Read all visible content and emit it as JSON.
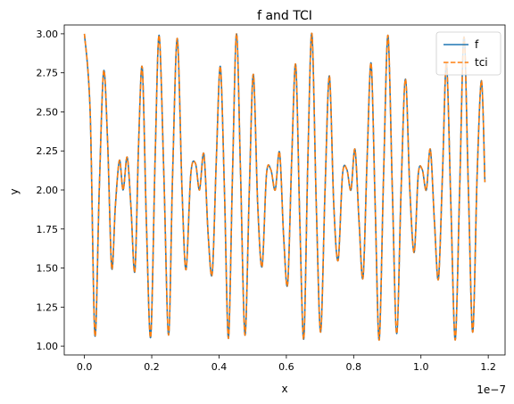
{
  "chart_data": {
    "type": "line",
    "title": "f and TCI",
    "xlabel": "x",
    "ylabel": "y",
    "x_offset_text": "1e−7",
    "xlim": [
      -0.06,
      1.25
    ],
    "ylim": [
      0.9435,
      3.0565
    ],
    "x_ticks": [
      0.0,
      0.2,
      0.4,
      0.6,
      0.8,
      1.0,
      1.2
    ],
    "x_tick_labels": [
      "0.0",
      "0.2",
      "0.4",
      "0.6",
      "0.8",
      "1.0",
      "1.2"
    ],
    "y_ticks": [
      1.0,
      1.25,
      1.5,
      1.75,
      2.0,
      2.25,
      2.5,
      2.75,
      3.0
    ],
    "y_tick_labels": [
      "1.00",
      "1.25",
      "1.50",
      "1.75",
      "2.00",
      "2.25",
      "2.50",
      "2.75",
      "3.00"
    ],
    "legend_placement": "upper right",
    "grid": false,
    "series": [
      {
        "name": "f",
        "color": "#1f77b4",
        "style": "solid",
        "x": [
          0.0,
          0.017,
          0.031,
          0.044,
          0.057,
          0.069,
          0.081,
          0.092,
          0.104,
          0.115,
          0.127,
          0.138,
          0.15,
          0.161,
          0.172,
          0.184,
          0.197,
          0.21,
          0.222,
          0.236,
          0.25,
          0.262,
          0.276,
          0.29,
          0.302,
          0.316,
          0.33,
          0.342,
          0.355,
          0.368,
          0.38,
          0.392,
          0.404,
          0.416,
          0.428,
          0.44,
          0.452,
          0.464,
          0.477,
          0.49,
          0.502,
          0.515,
          0.528,
          0.541,
          0.554,
          0.567,
          0.58,
          0.592,
          0.604,
          0.616,
          0.628,
          0.64,
          0.652,
          0.664,
          0.676,
          0.689,
          0.702,
          0.715,
          0.728,
          0.741,
          0.754,
          0.767,
          0.78,
          0.792,
          0.804,
          0.816,
          0.828,
          0.84,
          0.852,
          0.864,
          0.876,
          0.889,
          0.902,
          0.915,
          0.928,
          0.941,
          0.954,
          0.967,
          0.98,
          0.992,
          1.004,
          1.016,
          1.028,
          1.04,
          1.052,
          1.064,
          1.076,
          1.089,
          1.102,
          1.115,
          1.128,
          1.141,
          1.154,
          1.167,
          1.18,
          1.19
        ],
        "y": [
          3.0,
          2.5,
          1.07,
          2.0,
          2.76,
          2.3,
          1.5,
          1.9,
          2.19,
          2.0,
          2.21,
          1.9,
          1.48,
          2.3,
          2.78,
          1.8,
          1.06,
          2.2,
          2.99,
          2.1,
          1.07,
          2.1,
          2.97,
          2.0,
          1.49,
          2.1,
          2.17,
          2.0,
          2.23,
          1.7,
          1.47,
          2.2,
          2.79,
          2.0,
          1.05,
          2.1,
          3.0,
          2.1,
          1.07,
          2.0,
          2.74,
          1.9,
          1.51,
          2.1,
          2.13,
          2.0,
          2.24,
          1.7,
          1.4,
          2.2,
          2.8,
          1.8,
          1.05,
          2.2,
          3.0,
          1.9,
          1.09,
          2.0,
          2.73,
          1.9,
          1.55,
          2.1,
          2.13,
          2.0,
          2.26,
          1.8,
          1.44,
          2.2,
          2.81,
          1.9,
          1.04,
          2.1,
          2.99,
          2.0,
          1.08,
          2.0,
          2.71,
          2.0,
          1.6,
          2.1,
          2.13,
          2.0,
          2.26,
          1.8,
          1.43,
          2.1,
          2.81,
          1.9,
          1.04,
          2.0,
          2.98,
          2.0,
          1.09,
          2.1,
          2.7,
          2.05
        ]
      },
      {
        "name": "tci",
        "color": "#ff7f0e",
        "style": "dashed",
        "x": [
          0.0,
          0.017,
          0.031,
          0.044,
          0.057,
          0.069,
          0.081,
          0.092,
          0.104,
          0.115,
          0.127,
          0.138,
          0.15,
          0.161,
          0.172,
          0.184,
          0.197,
          0.21,
          0.222,
          0.236,
          0.25,
          0.262,
          0.276,
          0.29,
          0.302,
          0.316,
          0.33,
          0.342,
          0.355,
          0.368,
          0.38,
          0.392,
          0.404,
          0.416,
          0.428,
          0.44,
          0.452,
          0.464,
          0.477,
          0.49,
          0.502,
          0.515,
          0.528,
          0.541,
          0.554,
          0.567,
          0.58,
          0.592,
          0.604,
          0.616,
          0.628,
          0.64,
          0.652,
          0.664,
          0.676,
          0.689,
          0.702,
          0.715,
          0.728,
          0.741,
          0.754,
          0.767,
          0.78,
          0.792,
          0.804,
          0.816,
          0.828,
          0.84,
          0.852,
          0.864,
          0.876,
          0.889,
          0.902,
          0.915,
          0.928,
          0.941,
          0.954,
          0.967,
          0.98,
          0.992,
          1.004,
          1.016,
          1.028,
          1.04,
          1.052,
          1.064,
          1.076,
          1.089,
          1.102,
          1.115,
          1.128,
          1.141,
          1.154,
          1.167,
          1.18,
          1.19
        ],
        "y": [
          3.0,
          2.5,
          1.07,
          2.0,
          2.76,
          2.3,
          1.5,
          1.9,
          2.19,
          2.0,
          2.21,
          1.9,
          1.48,
          2.3,
          2.78,
          1.8,
          1.06,
          2.2,
          2.99,
          2.1,
          1.07,
          2.1,
          2.97,
          2.0,
          1.49,
          2.1,
          2.17,
          2.0,
          2.23,
          1.7,
          1.47,
          2.2,
          2.79,
          2.0,
          1.05,
          2.1,
          3.0,
          2.1,
          1.07,
          2.0,
          2.74,
          1.9,
          1.51,
          2.1,
          2.13,
          2.0,
          2.24,
          1.7,
          1.4,
          2.2,
          2.8,
          1.8,
          1.05,
          2.2,
          3.0,
          1.9,
          1.09,
          2.0,
          2.73,
          1.9,
          1.55,
          2.1,
          2.13,
          2.0,
          2.26,
          1.8,
          1.44,
          2.2,
          2.81,
          1.9,
          1.04,
          2.1,
          2.99,
          2.0,
          1.08,
          2.0,
          2.71,
          2.0,
          1.6,
          2.1,
          2.13,
          2.0,
          2.26,
          1.8,
          1.43,
          2.1,
          2.81,
          1.9,
          1.04,
          2.0,
          2.98,
          2.0,
          1.09,
          2.1,
          2.7,
          2.05
        ]
      }
    ]
  }
}
